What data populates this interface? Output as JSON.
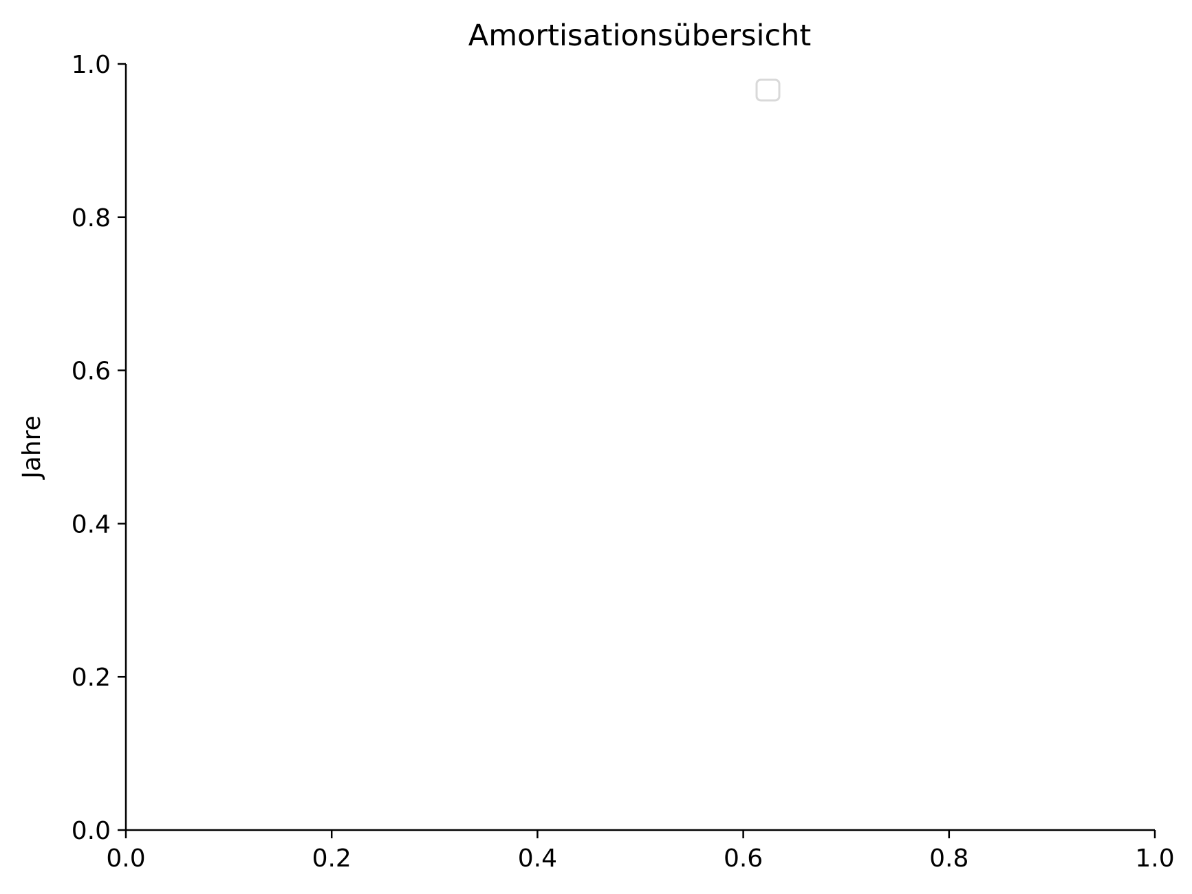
{
  "chart_data": {
    "type": "line",
    "title": "Amortisationsübersicht",
    "xlabel": "",
    "ylabel": "Jahre",
    "xlim": [
      0,
      1
    ],
    "ylim": [
      0,
      1
    ],
    "x_ticks": [
      "0.0",
      "0.2",
      "0.4",
      "0.6",
      "0.8",
      "1.0"
    ],
    "y_ticks": [
      "0.0",
      "0.2",
      "0.4",
      "0.6",
      "0.8",
      "1.0"
    ],
    "series": [],
    "grid": false,
    "legend": {
      "position": "upper-center-right",
      "entries": []
    },
    "colors": {
      "axis": "#000000",
      "legend_border": "#d9d9d9",
      "background": "#ffffff"
    }
  }
}
